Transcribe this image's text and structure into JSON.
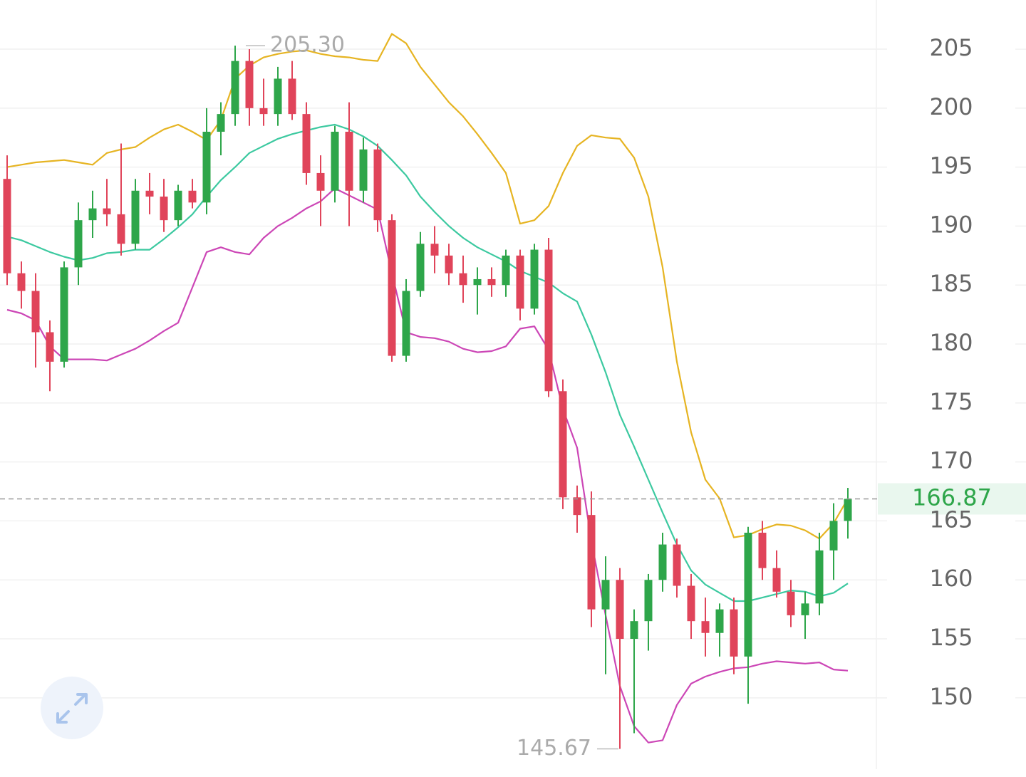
{
  "chart_data": {
    "type": "candlestick",
    "up_color": "#2ea64a",
    "down_color": "#e0445a",
    "grid": true,
    "ylim": [
      143.95,
      209.17
    ],
    "yticks": [
      150,
      155,
      160,
      165,
      170,
      175,
      180,
      185,
      190,
      195,
      200,
      205
    ],
    "open": [
      194,
      186,
      184.5,
      181,
      178.5,
      186.5,
      190.5,
      191.5,
      191,
      188.5,
      193,
      192.5,
      190.5,
      193,
      192,
      198,
      199.5,
      204,
      200,
      199.5,
      202.5,
      199.5,
      194.5,
      193,
      198,
      193,
      196.5,
      190.5,
      179,
      184.5,
      188.5,
      187.5,
      186,
      185,
      185.5,
      185,
      187.5,
      183,
      188,
      176,
      167,
      165.5,
      157.5,
      160,
      155,
      156.5,
      160,
      163,
      159.5,
      156.5,
      155.5,
      157.5,
      153.5,
      164,
      161,
      159,
      157,
      158,
      162.5,
      165
    ],
    "high": [
      196,
      187,
      186,
      182,
      187,
      192,
      193,
      194,
      197,
      194,
      194.5,
      194,
      193.5,
      194,
      200,
      200.5,
      205.3,
      205,
      202.5,
      203.5,
      204,
      200.5,
      196,
      198.5,
      200.5,
      197.5,
      197,
      191,
      185.5,
      189.5,
      190,
      188.5,
      187.5,
      186.5,
      186.5,
      188,
      188,
      188.5,
      189,
      177,
      168,
      167.5,
      162,
      161,
      157.5,
      160.5,
      164,
      163.5,
      160.5,
      158.5,
      158,
      158.5,
      164.5,
      165,
      162.5,
      160,
      159,
      164,
      166.5,
      167.8
    ],
    "low": [
      185,
      183,
      178,
      176,
      178,
      185,
      189,
      190,
      187.5,
      188,
      191,
      189.5,
      190,
      191.5,
      191,
      196,
      198.5,
      198.5,
      198.5,
      198.5,
      199,
      193.5,
      190,
      192,
      190,
      192,
      189.5,
      178.5,
      178.5,
      184,
      186,
      185,
      183.5,
      182.5,
      184,
      184,
      182,
      182.5,
      175.5,
      166,
      164,
      156,
      152,
      145.67,
      147,
      154,
      159,
      158.5,
      155,
      153.5,
      153.5,
      152,
      149.5,
      160,
      158.5,
      156,
      155,
      157,
      160,
      163.5
    ],
    "close": [
      186,
      184.5,
      181,
      178.5,
      186.5,
      190.5,
      191.5,
      191,
      188.5,
      193,
      192.5,
      190.5,
      193,
      192,
      198,
      199.5,
      204,
      200,
      199.5,
      202.5,
      199.5,
      194.5,
      193,
      198,
      193,
      196.5,
      190.5,
      179,
      184.5,
      188.5,
      187.5,
      186,
      185,
      185.5,
      185,
      187.5,
      183,
      188,
      176,
      167,
      165.5,
      157.5,
      160,
      155,
      156.5,
      160,
      163,
      159.5,
      156.5,
      155.5,
      157.5,
      153.5,
      164,
      161,
      159,
      157,
      158,
      162.5,
      165,
      166.87
    ],
    "series": [
      {
        "color": "#e6b422",
        "values": [
          195,
          195.2,
          195.4,
          195.5,
          195.6,
          195.4,
          195.2,
          196.2,
          196.5,
          196.7,
          197.5,
          198.2,
          198.6,
          198,
          197.3,
          199,
          202.5,
          203.6,
          204.3,
          204.6,
          204.8,
          204.9,
          204.6,
          204.4,
          204.3,
          204.1,
          204,
          206.3,
          205.5,
          203.5,
          202,
          200.5,
          199.3,
          197.8,
          196.2,
          194.5,
          190.2,
          190.5,
          191.7,
          194.5,
          196.8,
          197.7,
          197.5,
          197.4,
          195.8,
          192.5,
          186.5,
          178.5,
          172.5,
          168.5,
          166.9,
          163.6,
          163.8,
          164.3,
          164.7,
          164.6,
          164.2,
          163.5,
          164.8,
          166.9
        ]
      },
      {
        "color": "#3cc9a0",
        "values": [
          189.1,
          188.8,
          188.3,
          187.8,
          187.4,
          187.1,
          187.3,
          187.7,
          187.8,
          188,
          188,
          188.9,
          189.9,
          191,
          192.5,
          193.9,
          195,
          196.2,
          196.8,
          197.4,
          197.8,
          198.1,
          198.4,
          198.6,
          198.2,
          197.6,
          196.8,
          195.6,
          194.3,
          192.5,
          191.2,
          190,
          189,
          188.2,
          187.6,
          187,
          186.2,
          185.7,
          185.2,
          184.3,
          183.6,
          180.8,
          177.6,
          174,
          171.3,
          168.5,
          165.7,
          163,
          160.8,
          159.6,
          158.9,
          158.2,
          158.2,
          158.5,
          158.8,
          159.1,
          159,
          158.6,
          158.9,
          159.7
        ]
      },
      {
        "color": "#cc46b6",
        "values": [
          182.9,
          182.6,
          182,
          179.8,
          178.7,
          178.7,
          178.7,
          178.6,
          179.1,
          179.6,
          180.3,
          181.1,
          181.8,
          184.8,
          187.8,
          188.2,
          187.8,
          187.6,
          189,
          190,
          190.7,
          191.5,
          192.1,
          193.2,
          192.6,
          192,
          191.4,
          186,
          181,
          180.6,
          180.5,
          180.2,
          179.6,
          179.3,
          179.4,
          179.8,
          181.3,
          181.5,
          179.5,
          174.5,
          171.2,
          163.3,
          157,
          151,
          147.6,
          146.2,
          146.4,
          149.4,
          151.2,
          151.8,
          152.2,
          152.5,
          152.6,
          152.9,
          153.1,
          153,
          152.9,
          153,
          152.4,
          152.3
        ]
      }
    ],
    "annotations": {
      "high": {
        "value": 205.3,
        "label": "205.30"
      },
      "low": {
        "value": 145.67,
        "label": "145.67"
      },
      "last": {
        "value": 166.87,
        "label": "166.87",
        "color": "#2ea64a"
      }
    }
  }
}
